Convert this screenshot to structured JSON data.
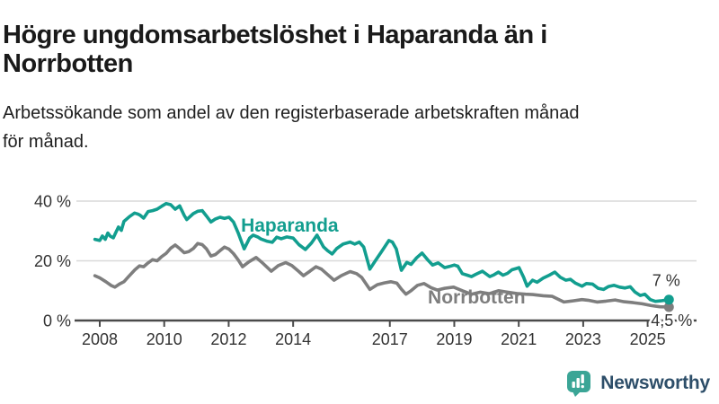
{
  "header": {
    "title_line1": "Högre ungdomsarbetslöshet i Haparanda än i",
    "title_line2": "Norrbotten",
    "subtitle_line1": "Arbetssökande som andel av den registerbaserade arbetskraften månad",
    "subtitle_line2": "för månad."
  },
  "chart_data": {
    "type": "line",
    "title": "Högre ungdomsarbetslöshet i Haparanda än i Norrbotten",
    "subtitle": "Arbetssökande som andel av den registerbaserade arbetskraften månad för månad.",
    "unit": "%",
    "grid": true,
    "legend_position": "inline-labels",
    "x_axis": {
      "ticks": [
        2008,
        2010,
        2012,
        2014,
        2017,
        2019,
        2021,
        2023,
        2025
      ],
      "range": [
        2007.8,
        2025.9
      ]
    },
    "y_axis": {
      "ticks": [
        {
          "value": 0,
          "label": "0 %"
        },
        {
          "value": 20,
          "label": "20 %"
        },
        {
          "value": 40,
          "label": "40 %"
        }
      ],
      "range": [
        0,
        44
      ]
    },
    "series": [
      {
        "name": "Norrbotten",
        "color": "#7e7e7e",
        "end_label": "4,5 %",
        "end_value": 4.5,
        "points": [
          [
            2007.85,
            15.0
          ],
          [
            2008.0,
            14.3
          ],
          [
            2008.19,
            13.0
          ],
          [
            2008.36,
            11.7
          ],
          [
            2008.47,
            11.2
          ],
          [
            2008.61,
            12.2
          ],
          [
            2008.75,
            13.0
          ],
          [
            2008.9,
            14.8
          ],
          [
            2009.09,
            17.0
          ],
          [
            2009.23,
            18.3
          ],
          [
            2009.36,
            18.0
          ],
          [
            2009.5,
            19.3
          ],
          [
            2009.64,
            20.4
          ],
          [
            2009.78,
            20.0
          ],
          [
            2009.92,
            21.4
          ],
          [
            2010.06,
            22.5
          ],
          [
            2010.2,
            24.2
          ],
          [
            2010.34,
            25.3
          ],
          [
            2010.48,
            24.1
          ],
          [
            2010.62,
            22.7
          ],
          [
            2010.76,
            23.1
          ],
          [
            2010.9,
            24.1
          ],
          [
            2011.04,
            25.8
          ],
          [
            2011.18,
            25.4
          ],
          [
            2011.31,
            24.0
          ],
          [
            2011.45,
            21.6
          ],
          [
            2011.59,
            22.1
          ],
          [
            2011.73,
            23.4
          ],
          [
            2011.87,
            24.6
          ],
          [
            2012.01,
            23.9
          ],
          [
            2012.15,
            22.4
          ],
          [
            2012.29,
            20.4
          ],
          [
            2012.43,
            18.0
          ],
          [
            2012.62,
            19.6
          ],
          [
            2012.85,
            21.1
          ],
          [
            2013.04,
            19.4
          ],
          [
            2013.32,
            16.5
          ],
          [
            2013.54,
            18.4
          ],
          [
            2013.77,
            19.4
          ],
          [
            2013.96,
            18.4
          ],
          [
            2014.18,
            16.4
          ],
          [
            2014.32,
            15.0
          ],
          [
            2014.52,
            16.5
          ],
          [
            2014.71,
            18.0
          ],
          [
            2014.88,
            17.2
          ],
          [
            2015.07,
            15.4
          ],
          [
            2015.27,
            13.5
          ],
          [
            2015.49,
            15.0
          ],
          [
            2015.77,
            16.4
          ],
          [
            2015.97,
            15.7
          ],
          [
            2016.13,
            14.4
          ],
          [
            2016.38,
            10.4
          ],
          [
            2016.61,
            12.0
          ],
          [
            2016.83,
            12.6
          ],
          [
            2017.03,
            13.0
          ],
          [
            2017.22,
            12.5
          ],
          [
            2017.36,
            10.5
          ],
          [
            2017.5,
            8.8
          ],
          [
            2017.66,
            10.0
          ],
          [
            2017.86,
            11.8
          ],
          [
            2018.06,
            12.4
          ],
          [
            2018.28,
            11.0
          ],
          [
            2018.47,
            10.2
          ],
          [
            2018.7,
            10.8
          ],
          [
            2018.98,
            11.2
          ],
          [
            2019.25,
            10.0
          ],
          [
            2019.53,
            8.8
          ],
          [
            2019.81,
            9.5
          ],
          [
            2020.09,
            9.0
          ],
          [
            2020.37,
            10.0
          ],
          [
            2020.65,
            9.5
          ],
          [
            2020.98,
            9.0
          ],
          [
            2021.21,
            8.8
          ],
          [
            2021.43,
            8.7
          ],
          [
            2021.76,
            8.3
          ],
          [
            2022.04,
            8.1
          ],
          [
            2022.4,
            6.2
          ],
          [
            2022.68,
            6.6
          ],
          [
            2022.96,
            7.0
          ],
          [
            2023.15,
            6.8
          ],
          [
            2023.43,
            6.2
          ],
          [
            2023.71,
            6.5
          ],
          [
            2023.99,
            6.9
          ],
          [
            2024.27,
            6.3
          ],
          [
            2024.55,
            6.0
          ],
          [
            2024.83,
            5.6
          ],
          [
            2025.11,
            5.0
          ],
          [
            2025.38,
            4.6
          ],
          [
            2025.66,
            4.5
          ]
        ],
        "label_anchor": [
          2018.18,
          5.7
        ]
      },
      {
        "name": "Haparanda",
        "color": "#129e8f",
        "end_label": "7 %",
        "end_value": 7,
        "points": [
          [
            2007.85,
            27.2
          ],
          [
            2008.0,
            26.8
          ],
          [
            2008.08,
            28.3
          ],
          [
            2008.17,
            27.2
          ],
          [
            2008.25,
            29.3
          ],
          [
            2008.33,
            28.2
          ],
          [
            2008.42,
            27.7
          ],
          [
            2008.5,
            29.5
          ],
          [
            2008.58,
            31.3
          ],
          [
            2008.67,
            30.2
          ],
          [
            2008.75,
            33.2
          ],
          [
            2008.92,
            34.8
          ],
          [
            2009.08,
            36.0
          ],
          [
            2009.17,
            35.7
          ],
          [
            2009.25,
            35.3
          ],
          [
            2009.36,
            34.3
          ],
          [
            2009.5,
            36.5
          ],
          [
            2009.64,
            36.8
          ],
          [
            2009.78,
            37.3
          ],
          [
            2009.92,
            38.3
          ],
          [
            2010.06,
            39.2
          ],
          [
            2010.2,
            38.8
          ],
          [
            2010.34,
            37.3
          ],
          [
            2010.48,
            38.4
          ],
          [
            2010.62,
            35.2
          ],
          [
            2010.7,
            33.8
          ],
          [
            2010.9,
            35.8
          ],
          [
            2011.04,
            36.6
          ],
          [
            2011.18,
            36.8
          ],
          [
            2011.31,
            35.0
          ],
          [
            2011.45,
            33.0
          ],
          [
            2011.59,
            34.0
          ],
          [
            2011.73,
            34.6
          ],
          [
            2011.87,
            34.2
          ],
          [
            2012.01,
            34.6
          ],
          [
            2012.15,
            33.0
          ],
          [
            2012.29,
            29.5
          ],
          [
            2012.48,
            24.0
          ],
          [
            2012.65,
            27.6
          ],
          [
            2012.76,
            28.6
          ],
          [
            2012.9,
            28.0
          ],
          [
            2013.0,
            27.3
          ],
          [
            2013.18,
            26.6
          ],
          [
            2013.35,
            26.2
          ],
          [
            2013.49,
            27.9
          ],
          [
            2013.63,
            27.4
          ],
          [
            2013.8,
            28.0
          ],
          [
            2014.0,
            27.6
          ],
          [
            2014.18,
            25.4
          ],
          [
            2014.38,
            23.8
          ],
          [
            2014.57,
            26.0
          ],
          [
            2014.74,
            28.6
          ],
          [
            2014.94,
            24.7
          ],
          [
            2015.07,
            23.4
          ],
          [
            2015.21,
            22.3
          ],
          [
            2015.35,
            24.1
          ],
          [
            2015.55,
            25.6
          ],
          [
            2015.77,
            26.3
          ],
          [
            2015.91,
            25.6
          ],
          [
            2016.05,
            26.3
          ],
          [
            2016.19,
            24.6
          ],
          [
            2016.38,
            17.2
          ],
          [
            2016.55,
            20.0
          ],
          [
            2016.75,
            23.2
          ],
          [
            2016.97,
            26.8
          ],
          [
            2017.08,
            26.3
          ],
          [
            2017.2,
            24.0
          ],
          [
            2017.36,
            16.8
          ],
          [
            2017.53,
            19.5
          ],
          [
            2017.66,
            18.8
          ],
          [
            2017.83,
            21.0
          ],
          [
            2018.0,
            22.6
          ],
          [
            2018.17,
            20.4
          ],
          [
            2018.33,
            18.6
          ],
          [
            2018.5,
            19.3
          ],
          [
            2018.7,
            17.7
          ],
          [
            2018.85,
            18.1
          ],
          [
            2019.0,
            18.6
          ],
          [
            2019.11,
            18.2
          ],
          [
            2019.25,
            15.7
          ],
          [
            2019.4,
            15.2
          ],
          [
            2019.53,
            14.7
          ],
          [
            2019.67,
            15.5
          ],
          [
            2019.87,
            16.5
          ],
          [
            2020.1,
            14.7
          ],
          [
            2020.23,
            15.3
          ],
          [
            2020.37,
            16.2
          ],
          [
            2020.51,
            15.2
          ],
          [
            2020.65,
            15.8
          ],
          [
            2020.79,
            17.0
          ],
          [
            2020.92,
            17.4
          ],
          [
            2021.01,
            17.7
          ],
          [
            2021.15,
            14.5
          ],
          [
            2021.26,
            11.5
          ],
          [
            2021.43,
            13.5
          ],
          [
            2021.57,
            12.8
          ],
          [
            2021.76,
            14.2
          ],
          [
            2021.95,
            15.2
          ],
          [
            2022.12,
            16.2
          ],
          [
            2022.29,
            14.5
          ],
          [
            2022.46,
            13.5
          ],
          [
            2022.6,
            13.8
          ],
          [
            2022.76,
            12.5
          ],
          [
            2022.96,
            11.5
          ],
          [
            2023.1,
            12.4
          ],
          [
            2023.29,
            12.2
          ],
          [
            2023.46,
            10.8
          ],
          [
            2023.63,
            10.4
          ],
          [
            2023.79,
            11.4
          ],
          [
            2023.96,
            11.8
          ],
          [
            2024.13,
            11.2
          ],
          [
            2024.3,
            10.9
          ],
          [
            2024.46,
            11.3
          ],
          [
            2024.6,
            9.6
          ],
          [
            2024.77,
            8.4
          ],
          [
            2024.91,
            8.8
          ],
          [
            2025.08,
            7.0
          ],
          [
            2025.24,
            6.4
          ],
          [
            2025.41,
            6.6
          ],
          [
            2025.66,
            7.0
          ]
        ],
        "label_anchor": [
          2012.38,
          29.7
        ]
      }
    ],
    "colors": {
      "grid": "#d9d9d9",
      "axis": "#4a4a4a",
      "tick_text": "#333333",
      "end_label_text": "#333333"
    }
  },
  "branding": {
    "logo_text": "Newsworthy",
    "logo_color": "#3ba596",
    "logo_text_color": "#2d4e69"
  }
}
